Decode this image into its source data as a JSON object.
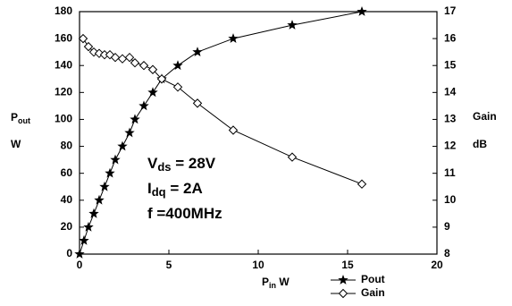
{
  "chart_data": {
    "type": "line",
    "annotations": [
      {
        "main": "V",
        "sub": "ds",
        "rest": " = 28V"
      },
      {
        "main": "I",
        "sub": "dq",
        "rest": "  = 2A"
      },
      {
        "main": "f =400MHz",
        "sub": "",
        "rest": ""
      }
    ],
    "x_label": {
      "main": "P",
      "sub": "in",
      "rest": "  W"
    },
    "y_label": {
      "main": "P",
      "sub": "out",
      "unit": "W"
    },
    "y2_label": {
      "main": "Gain",
      "unit": "dB"
    },
    "xlim": [
      0,
      20
    ],
    "xticks": [
      0,
      5,
      10,
      15,
      20
    ],
    "ylim": [
      0,
      180
    ],
    "yticks": [
      0,
      20,
      40,
      60,
      80,
      100,
      120,
      140,
      160,
      180
    ],
    "y2lim": [
      8,
      17
    ],
    "y2ticks": [
      8,
      9,
      10,
      11,
      12,
      13,
      14,
      15,
      16,
      17
    ],
    "legend": "bottom-right",
    "series": [
      {
        "name": "Pout",
        "color": "#000000",
        "marker": "star",
        "x": [
          0,
          0.25,
          0.5,
          0.8,
          1.1,
          1.4,
          1.7,
          2.0,
          2.4,
          2.8,
          3.1,
          3.6,
          4.1,
          4.6,
          5.5,
          6.6,
          8.6,
          11.9,
          15.8
        ],
        "values": [
          0,
          10,
          20,
          30,
          40,
          50,
          60,
          70,
          80,
          90,
          100,
          110,
          120,
          130,
          140,
          150,
          160,
          170,
          180
        ]
      },
      {
        "name": "Gain",
        "color": "#000000",
        "marker": "diamond",
        "axis": "y2",
        "x": [
          0.2,
          0.5,
          0.8,
          1.1,
          1.4,
          1.7,
          2.0,
          2.4,
          2.8,
          3.1,
          3.6,
          4.1,
          4.6,
          5.5,
          6.6,
          8.6,
          11.9,
          15.8
        ],
        "values": [
          16.0,
          15.7,
          15.5,
          15.45,
          15.4,
          15.4,
          15.3,
          15.25,
          15.3,
          15.1,
          15.0,
          14.85,
          14.5,
          14.2,
          13.6,
          12.6,
          11.6,
          10.6
        ]
      }
    ]
  }
}
